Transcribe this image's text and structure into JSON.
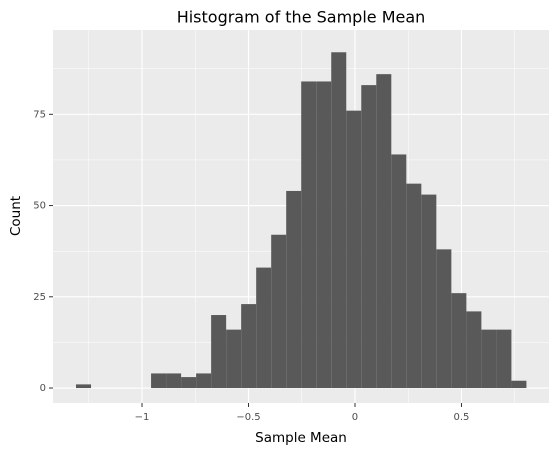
{
  "chart_data": {
    "type": "histogram",
    "title": "Histogram of the Sample Mean",
    "x_label": "Sample Mean",
    "y_label": "Count",
    "bins": [
      -1.31,
      -1.2395,
      -1.169,
      -1.0985,
      -1.028,
      -0.9575,
      -0.887,
      -0.8165,
      -0.746,
      -0.6755,
      -0.605,
      -0.5345,
      -0.464,
      -0.3935,
      -0.323,
      -0.2525,
      -0.182,
      -0.1115,
      -0.041,
      0.0295,
      0.1,
      0.1705,
      0.241,
      0.3115,
      0.382,
      0.4525,
      0.523,
      0.5935,
      0.664,
      0.7345,
      0.805
    ],
    "counts": [
      1,
      0,
      0,
      0,
      0,
      4,
      4,
      3,
      4,
      20,
      16,
      23,
      33,
      42,
      54,
      84,
      84,
      92,
      76,
      83,
      86,
      64,
      56,
      53,
      38,
      26,
      21,
      16,
      16,
      2
    ],
    "color": "#595959",
    "xlim": [
      -1.418,
      0.911
    ],
    "ylim": [
      -4.1,
      98.1
    ],
    "xticks": [
      {
        "value": -1,
        "label": "−1"
      },
      {
        "value": -0.5,
        "label": "−0.5"
      },
      0,
      0.5
    ],
    "yticks": [
      0,
      25,
      50,
      75
    ],
    "x_minor_ticks": [
      -1.25,
      -0.75,
      -0.25,
      0.25,
      0.75
    ],
    "y_minor_ticks": [
      12.5,
      37.5,
      62.5,
      87.5
    ],
    "grid": true
  }
}
